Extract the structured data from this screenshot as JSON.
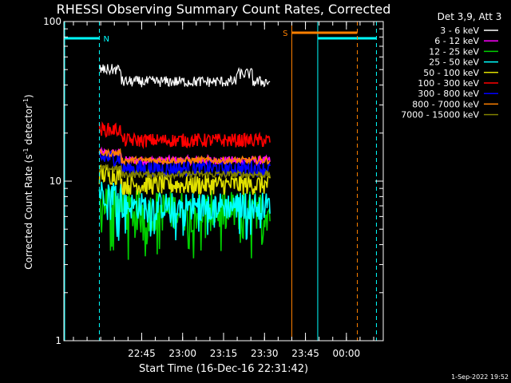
{
  "chart_data": {
    "type": "line",
    "title": "RHESSI Observing Summary Count Rates, Corrected",
    "xlabel": "Start Time (16-Dec-16 22:31:42)",
    "ylabel_main": "Corrected Count Rate (s",
    "ylabel_sup1": "-1",
    "ylabel_mid": " detector",
    "ylabel_sup2": "-1",
    "ylabel_end": ")",
    "yscale": "log",
    "ylim": [
      1,
      100
    ],
    "xlim_min": [
      -13.0,
      104.0
    ],
    "yticks": [
      {
        "value": 1,
        "label": "1"
      },
      {
        "value": 10,
        "label": "10"
      },
      {
        "value": 100,
        "label": "100"
      }
    ],
    "xticks": [
      {
        "value": 15.5,
        "label": "22:45"
      },
      {
        "value": 30.5,
        "label": "23:00"
      },
      {
        "value": 45.5,
        "label": "23:15"
      },
      {
        "value": 60.5,
        "label": "23:30"
      },
      {
        "value": 75.5,
        "label": "23:45"
      },
      {
        "value": 90.5,
        "label": "00:00"
      }
    ],
    "legend_header": "Det 3,9, Att 3",
    "legend_placement": "top-right",
    "series": [
      {
        "name": "3 - 6 keV",
        "color": "#ffffff",
        "level": 42,
        "start_level": 50,
        "noise": 0.08,
        "min": null
      },
      {
        "name": "6 - 12 keV",
        "color": "#ff00ff",
        "level": 13.5,
        "start_level": 15,
        "noise": 0.06,
        "min": null
      },
      {
        "name": "12 - 25 keV",
        "color": "#00d000",
        "level": 6.5,
        "start_level": 7.5,
        "noise": 0.3,
        "min": 3.0
      },
      {
        "name": "25 - 50 keV",
        "color": "#00ffff",
        "level": 7.0,
        "start_level": 8.5,
        "noise": 0.2,
        "min": 4.2
      },
      {
        "name": "50 - 100 keV",
        "color": "#e0e000",
        "level": 9.5,
        "start_level": 11,
        "noise": 0.15,
        "min": null
      },
      {
        "name": "100 - 300 keV",
        "color": "#ff0000",
        "level": 18,
        "start_level": 21,
        "noise": 0.1,
        "min": null
      },
      {
        "name": "300 - 800 keV",
        "color": "#0000ff",
        "level": 12,
        "start_level": 14,
        "noise": 0.12,
        "min": null
      },
      {
        "name": "800 - 7000 keV",
        "color": "#ff8000",
        "level": 13.5,
        "start_level": 15,
        "noise": 0.05,
        "min": null
      },
      {
        "name": "7000 - 15000 keV",
        "color": "#808000",
        "level": 11,
        "start_level": 12,
        "noise": 0.05,
        "min": null
      }
    ],
    "data_window": [
      0.0,
      62.5
    ],
    "night_label": "N",
    "saa_label": "S",
    "night_color": "#00ffff",
    "saa_color": "#ff8000",
    "night_intervals": [
      [
        -13.0,
        0.0
      ],
      [
        80.0,
        101.5
      ]
    ],
    "saa_intervals": [
      [
        70.5,
        94.5
      ]
    ],
    "footer_date": "1-Sep-2022 19:52"
  }
}
